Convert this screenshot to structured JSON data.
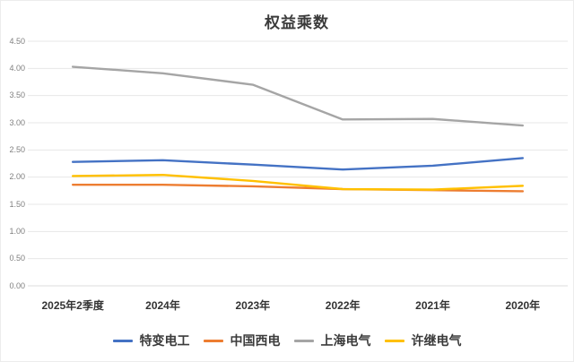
{
  "chart_data": {
    "type": "line",
    "title": "权益乘数",
    "categories": [
      "2025年2季度",
      "2024年",
      "2023年",
      "2022年",
      "2021年",
      "2020年"
    ],
    "series": [
      {
        "name": "特变电工",
        "color": "#4472C4",
        "values": [
          2.28,
          2.31,
          2.23,
          2.14,
          2.21,
          2.35
        ]
      },
      {
        "name": "中国西电",
        "color": "#ED7D31",
        "values": [
          1.86,
          1.86,
          1.83,
          1.78,
          1.76,
          1.74
        ]
      },
      {
        "name": "上海电气",
        "color": "#A5A5A5",
        "values": [
          4.03,
          3.91,
          3.7,
          3.06,
          3.07,
          2.95
        ]
      },
      {
        "name": "许继电气",
        "color": "#FFC000",
        "values": [
          2.02,
          2.04,
          1.93,
          1.78,
          1.77,
          1.84
        ]
      }
    ],
    "ylim": [
      0,
      4.5
    ],
    "ytick_step": 0.5,
    "yticks": [
      "0.00",
      "0.50",
      "1.00",
      "1.50",
      "2.00",
      "2.50",
      "3.00",
      "3.50",
      "4.00",
      "4.50"
    ],
    "grid": true,
    "legend_position": "bottom"
  },
  "styles": {
    "title_color": "#3B3B3B",
    "xtick_color": "#333333",
    "ytick_color": "#7F7F7F",
    "legend_text_color": "#3B3B3B",
    "grid_color": "#E7E7E7",
    "baseline_color": "#DEDEDE",
    "background": "#FFFFFF"
  }
}
